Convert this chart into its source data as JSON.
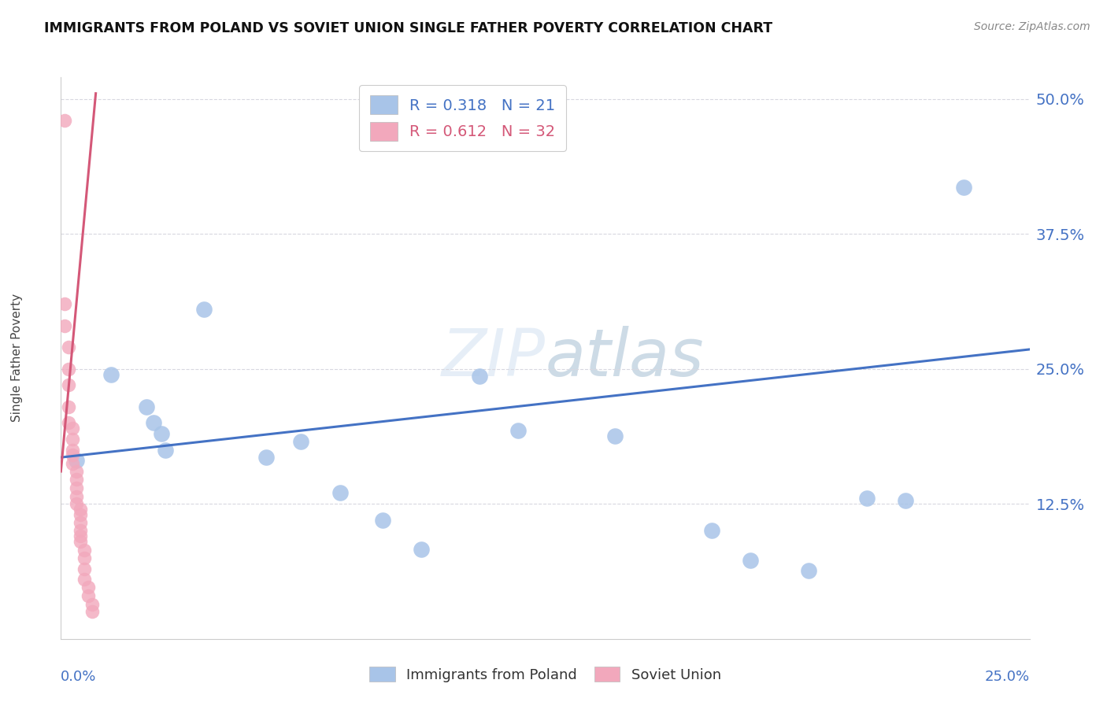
{
  "title": "IMMIGRANTS FROM POLAND VS SOVIET UNION SINGLE FATHER POVERTY CORRELATION CHART",
  "source": "Source: ZipAtlas.com",
  "ylabel": "Single Father Poverty",
  "y_ticks": [
    0.0,
    0.125,
    0.25,
    0.375,
    0.5
  ],
  "y_tick_labels": [
    "",
    "12.5%",
    "25.0%",
    "37.5%",
    "50.0%"
  ],
  "x_range": [
    0.0,
    0.25
  ],
  "y_range": [
    0.0,
    0.52
  ],
  "legend_poland_R": "0.318",
  "legend_poland_N": "21",
  "legend_soviet_R": "0.612",
  "legend_soviet_N": "32",
  "color_poland": "#a8c4e8",
  "color_soviet": "#f2a8bc",
  "color_trendline_poland": "#4472c4",
  "color_trendline_soviet": "#d45878",
  "color_axis_labels": "#4472c4",
  "color_grid": "#d8d8e0",
  "color_title": "#111111",
  "poland_x": [
    0.004,
    0.013,
    0.022,
    0.024,
    0.026,
    0.027,
    0.037,
    0.053,
    0.062,
    0.072,
    0.083,
    0.093,
    0.108,
    0.118,
    0.143,
    0.168,
    0.178,
    0.193,
    0.208,
    0.218,
    0.233
  ],
  "poland_y": [
    0.165,
    0.245,
    0.215,
    0.2,
    0.19,
    0.175,
    0.305,
    0.168,
    0.183,
    0.135,
    0.11,
    0.083,
    0.243,
    0.193,
    0.188,
    0.1,
    0.073,
    0.063,
    0.13,
    0.128,
    0.418
  ],
  "soviet_x": [
    0.001,
    0.001,
    0.001,
    0.002,
    0.002,
    0.002,
    0.002,
    0.002,
    0.003,
    0.003,
    0.003,
    0.003,
    0.003,
    0.004,
    0.004,
    0.004,
    0.004,
    0.004,
    0.005,
    0.005,
    0.005,
    0.005,
    0.005,
    0.005,
    0.006,
    0.006,
    0.006,
    0.006,
    0.007,
    0.007,
    0.008,
    0.008
  ],
  "soviet_y": [
    0.48,
    0.31,
    0.29,
    0.27,
    0.25,
    0.235,
    0.215,
    0.2,
    0.195,
    0.185,
    0.175,
    0.17,
    0.162,
    0.155,
    0.148,
    0.14,
    0.132,
    0.125,
    0.12,
    0.115,
    0.108,
    0.1,
    0.095,
    0.09,
    0.082,
    0.075,
    0.065,
    0.055,
    0.048,
    0.04,
    0.032,
    0.025
  ],
  "poland_trend_x": [
    0.0,
    0.25
  ],
  "poland_trend_y": [
    0.168,
    0.268
  ],
  "soviet_trend_x": [
    0.0,
    0.009
  ],
  "soviet_trend_y": [
    0.155,
    0.505
  ]
}
